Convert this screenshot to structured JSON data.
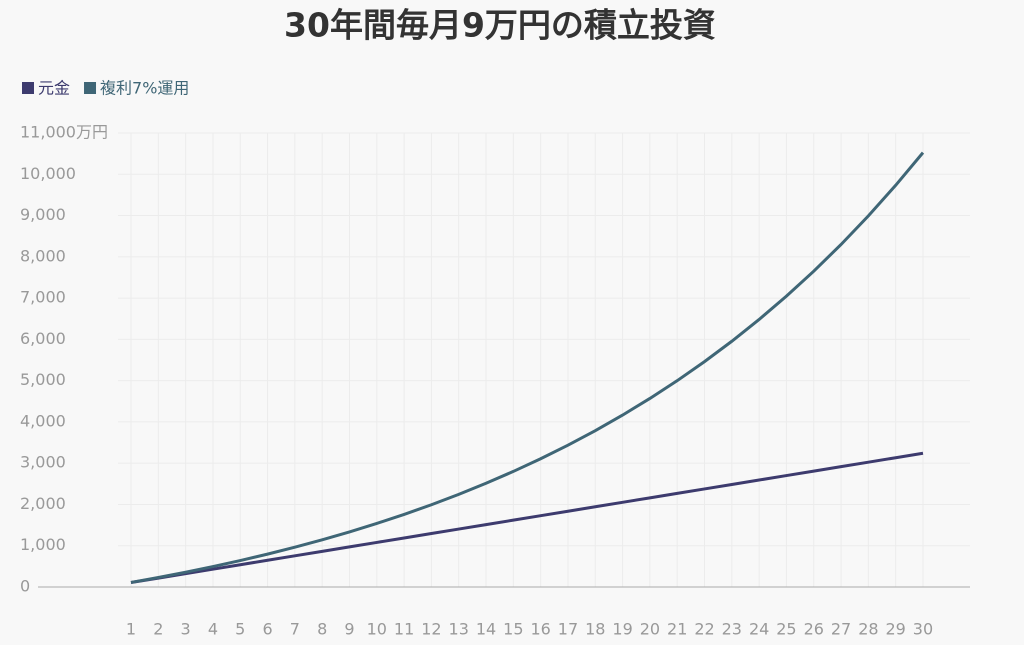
{
  "chart_data": {
    "type": "line",
    "title": "30年間毎月9万円の積立投資",
    "categories": [
      "1",
      "2",
      "3",
      "4",
      "5",
      "6",
      "7",
      "8",
      "9",
      "10",
      "11",
      "12",
      "13",
      "14",
      "15",
      "16",
      "17",
      "18",
      "19",
      "20",
      "21",
      "22",
      "23",
      "24",
      "25",
      "26",
      "27",
      "28",
      "29",
      "30"
    ],
    "series": [
      {
        "name": "元金",
        "color": "#3d3b6e",
        "values": [
          108,
          216,
          324,
          432,
          540,
          648,
          756,
          864,
          972,
          1080,
          1188,
          1296,
          1404,
          1512,
          1620,
          1728,
          1836,
          1944,
          2052,
          2160,
          2268,
          2376,
          2484,
          2592,
          2700,
          2808,
          2916,
          3024,
          3132,
          3240
        ]
      },
      {
        "name": "複利7%運用",
        "color": "#3f6676",
        "values": [
          111,
          231,
          358,
          495,
          641,
          797,
          964,
          1143,
          1335,
          1540,
          1759,
          1993,
          2244,
          2513,
          2800,
          3107,
          3436,
          3788,
          4165,
          4568,
          4999,
          5461,
          5954,
          6482,
          7048,
          7652,
          8299,
          8992,
          9733,
          10525
        ]
      }
    ],
    "ylim": [
      0,
      11000
    ],
    "yticks": [
      0,
      {
        "value": 1000,
        "label": "1,000"
      },
      {
        "value": 2000,
        "label": "2,000"
      },
      {
        "value": 3000,
        "label": "3,000"
      },
      {
        "value": 4000,
        "label": "4,000"
      },
      {
        "value": 5000,
        "label": "5,000"
      },
      {
        "value": 6000,
        "label": "6,000"
      },
      {
        "value": 7000,
        "label": "7,000"
      },
      {
        "value": 8000,
        "label": "8,000"
      },
      {
        "value": 9000,
        "label": "9,000"
      },
      {
        "value": 10000,
        "label": "10,000"
      },
      {
        "value": 11000,
        "label": "11,000万円"
      }
    ],
    "grid": true,
    "legend": "top-left"
  }
}
